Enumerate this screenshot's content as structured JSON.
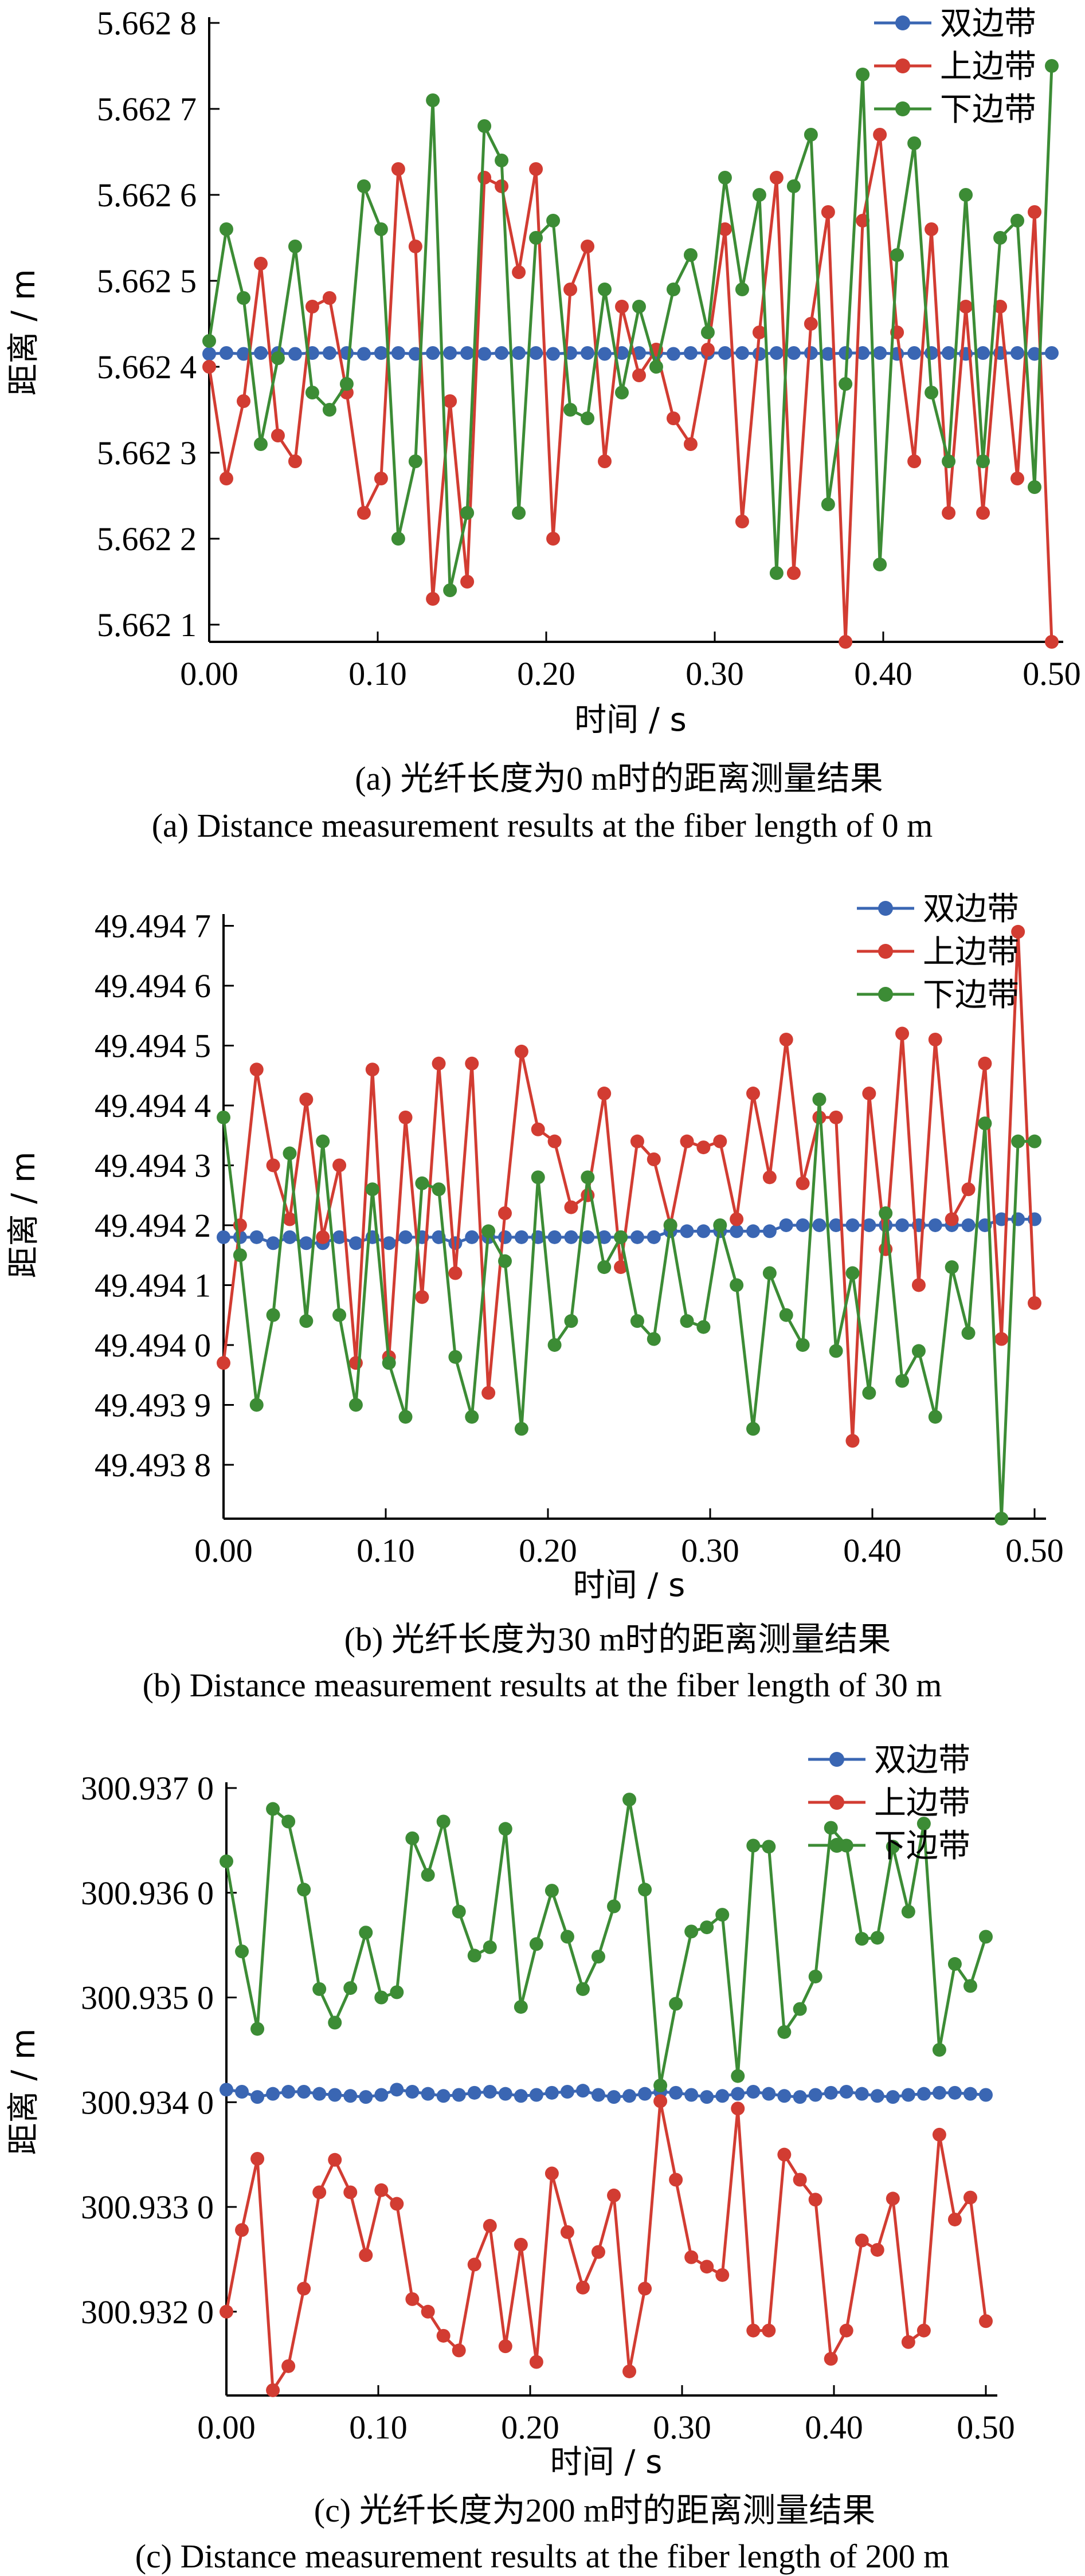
{
  "chart_data": [
    {
      "id": "a",
      "type": "line",
      "xlabel": "时间 / s",
      "ylabel": "距离 / m",
      "xlim": [
        0.0,
        0.5
      ],
      "ylim": [
        5.66208,
        5.6628
      ],
      "xticks": [
        0.0,
        0.1,
        0.2,
        0.3,
        0.4,
        0.5
      ],
      "xtick_labels": [
        "0.00",
        "0.10",
        "0.20",
        "0.30",
        "0.40",
        "0.50"
      ],
      "yticks": [
        5.6621,
        5.6622,
        5.6623,
        5.6624,
        5.6625,
        5.6626,
        5.6627,
        5.6628
      ],
      "ytick_labels": [
        "5.662 1",
        "5.662 2",
        "5.662 3",
        "5.662 4",
        "5.662 5",
        "5.662 6",
        "5.662 7",
        "5.662 8"
      ],
      "legend_position": "top-right",
      "caption_zh": "(a) 光纤长度为0 m时的距离测量结果",
      "caption_en": "(a) Distance measurement results at the fiber length of 0 m",
      "colors": {
        "双边带": "#3a66b3",
        "上边带": "#d23c32",
        "下边带": "#3c8c35"
      },
      "x": [
        0.0,
        0.0102,
        0.0204,
        0.0306,
        0.0408,
        0.051,
        0.0612,
        0.0714,
        0.0816,
        0.0918,
        0.102,
        0.1122,
        0.1224,
        0.1327,
        0.1429,
        0.1531,
        0.1633,
        0.1735,
        0.1837,
        0.1939,
        0.2041,
        0.2143,
        0.2245,
        0.2347,
        0.2449,
        0.2551,
        0.2653,
        0.2755,
        0.2857,
        0.2959,
        0.3061,
        0.3163,
        0.3265,
        0.3367,
        0.3469,
        0.3571,
        0.3673,
        0.3776,
        0.3878,
        0.398,
        0.4082,
        0.4184,
        0.4286,
        0.4388,
        0.449,
        0.4592,
        0.4694,
        0.4796,
        0.4898,
        0.5
      ],
      "series": [
        {
          "name": "双边带",
          "values": [
            5.662415,
            5.662416,
            5.662415,
            5.662416,
            5.662416,
            5.662415,
            5.662416,
            5.662416,
            5.662416,
            5.662415,
            5.662416,
            5.662416,
            5.662415,
            5.662416,
            5.662416,
            5.662416,
            5.662415,
            5.662416,
            5.662416,
            5.662416,
            5.662415,
            5.662416,
            5.662416,
            5.662415,
            5.662416,
            5.662416,
            5.662416,
            5.662415,
            5.662416,
            5.662416,
            5.662416,
            5.662416,
            5.662415,
            5.662416,
            5.662416,
            5.662416,
            5.662415,
            5.662416,
            5.662416,
            5.662416,
            5.662415,
            5.662416,
            5.662416,
            5.662416,
            5.662415,
            5.662416,
            5.662416,
            5.662416,
            5.662415,
            5.662416
          ]
        },
        {
          "name": "上边带",
          "values": [
            5.6624,
            5.66227,
            5.66236,
            5.66252,
            5.66232,
            5.66229,
            5.66247,
            5.66248,
            5.66237,
            5.66223,
            5.66227,
            5.66263,
            5.66254,
            5.66213,
            5.66236,
            5.66215,
            5.66262,
            5.66261,
            5.66251,
            5.66263,
            5.6622,
            5.66249,
            5.66254,
            5.66229,
            5.66247,
            5.66239,
            5.66242,
            5.66234,
            5.66231,
            5.66242,
            5.66256,
            5.66222,
            5.66244,
            5.66262,
            5.66216,
            5.66245,
            5.66258,
            5.66208,
            5.66257,
            5.66267,
            5.66244,
            5.66229,
            5.66256,
            5.66223,
            5.66247,
            5.66223,
            5.66247,
            5.66227,
            5.66258,
            5.66208
          ]
        },
        {
          "name": "下边带",
          "values": [
            5.66243,
            5.66256,
            5.66248,
            5.66231,
            5.66241,
            5.66254,
            5.66237,
            5.66235,
            5.66238,
            5.66261,
            5.66256,
            5.6622,
            5.66229,
            5.66271,
            5.66214,
            5.66223,
            5.66268,
            5.66264,
            5.66223,
            5.66255,
            5.66257,
            5.66235,
            5.66234,
            5.66249,
            5.66237,
            5.66247,
            5.6624,
            5.66249,
            5.66253,
            5.66244,
            5.66262,
            5.66249,
            5.6626,
            5.66216,
            5.66261,
            5.66267,
            5.66224,
            5.66238,
            5.66274,
            5.66217,
            5.66253,
            5.66266,
            5.66237,
            5.66229,
            5.6626,
            5.66229,
            5.66255,
            5.66257,
            5.66226,
            5.66275
          ]
        }
      ]
    },
    {
      "id": "b",
      "type": "line",
      "xlabel": "时间 / s",
      "ylabel": "距离 / m",
      "xlim": [
        0.0,
        0.5
      ],
      "ylim": [
        49.49371,
        49.49471
      ],
      "xticks": [
        0.0,
        0.1,
        0.2,
        0.3,
        0.4,
        0.5
      ],
      "xtick_labels": [
        "0.00",
        "0.10",
        "0.20",
        "0.30",
        "0.40",
        "0.50"
      ],
      "yticks": [
        49.4938,
        49.4939,
        49.494,
        49.4941,
        49.4942,
        49.4943,
        49.4944,
        49.4945,
        49.4946,
        49.4947
      ],
      "ytick_labels": [
        "49.493 8",
        "49.493 9",
        "49.494 0",
        "49.494 1",
        "49.494 2",
        "49.494 3",
        "49.494 4",
        "49.494 5",
        "49.494 6",
        "49.494 7"
      ],
      "legend_position": "top-right",
      "caption_zh": "(b) 光纤长度为30 m时的距离测量结果",
      "caption_en": "(b) Distance measurement results at the fiber length of 30 m",
      "colors": {
        "双边带": "#3a66b3",
        "上边带": "#d23c32",
        "下边带": "#3c8c35"
      },
      "x": [
        0.0,
        0.0102,
        0.0204,
        0.0306,
        0.0408,
        0.051,
        0.0612,
        0.0714,
        0.0816,
        0.0918,
        0.102,
        0.1122,
        0.1224,
        0.1327,
        0.1429,
        0.1531,
        0.1633,
        0.1735,
        0.1837,
        0.1939,
        0.2041,
        0.2143,
        0.2245,
        0.2347,
        0.2449,
        0.2551,
        0.2653,
        0.2755,
        0.2857,
        0.2959,
        0.3061,
        0.3163,
        0.3265,
        0.3367,
        0.3469,
        0.3571,
        0.3673,
        0.3776,
        0.3878,
        0.398,
        0.4082,
        0.4184,
        0.4286,
        0.4388,
        0.449,
        0.4592,
        0.4694,
        0.4796,
        0.4898,
        0.5
      ],
      "series": [
        {
          "name": "双边带",
          "values": [
            49.49418,
            49.49418,
            49.49418,
            49.49417,
            49.49418,
            49.49417,
            49.49417,
            49.49418,
            49.49417,
            49.49418,
            49.49417,
            49.49418,
            49.49418,
            49.49418,
            49.49417,
            49.49418,
            49.49418,
            49.49418,
            49.49418,
            49.49418,
            49.49418,
            49.49418,
            49.49418,
            49.49418,
            49.49418,
            49.49418,
            49.49418,
            49.49419,
            49.49419,
            49.49419,
            49.49419,
            49.49419,
            49.49419,
            49.49419,
            49.4942,
            49.4942,
            49.4942,
            49.4942,
            49.4942,
            49.4942,
            49.4942,
            49.4942,
            49.4942,
            49.4942,
            49.4942,
            49.4942,
            49.4942,
            49.49421,
            49.49421,
            49.49421
          ]
        },
        {
          "name": "上边带",
          "values": [
            49.49397,
            49.4942,
            49.49446,
            49.4943,
            49.49421,
            49.49441,
            49.49418,
            49.4943,
            49.49397,
            49.49446,
            49.49398,
            49.49438,
            49.49408,
            49.49447,
            49.49412,
            49.49447,
            49.49392,
            49.49422,
            49.49449,
            49.49436,
            49.49434,
            49.49423,
            49.49425,
            49.49442,
            49.49413,
            49.49434,
            49.49431,
            49.4942,
            49.49434,
            49.49433,
            49.49434,
            49.49421,
            49.49442,
            49.49428,
            49.49451,
            49.49427,
            49.49438,
            49.49438,
            49.49384,
            49.49442,
            49.49416,
            49.49452,
            49.4941,
            49.49451,
            49.49421,
            49.49426,
            49.49447,
            49.49401,
            49.49469,
            49.49407
          ]
        },
        {
          "name": "下边带",
          "values": [
            49.49438,
            49.49415,
            49.4939,
            49.49405,
            49.49432,
            49.49404,
            49.49434,
            49.49405,
            49.4939,
            49.49426,
            49.49397,
            49.49388,
            49.49427,
            49.49426,
            49.49398,
            49.49388,
            49.49419,
            49.49414,
            49.49386,
            49.49428,
            49.494,
            49.49404,
            49.49428,
            49.49413,
            49.49418,
            49.49404,
            49.49401,
            49.4942,
            49.49404,
            49.49403,
            49.4942,
            49.4941,
            49.49386,
            49.49412,
            49.49405,
            49.494,
            49.49441,
            49.49399,
            49.49412,
            49.49392,
            49.49422,
            49.49394,
            49.49399,
            49.49388,
            49.49413,
            49.49402,
            49.49437,
            49.49371,
            49.49434,
            49.49434
          ]
        }
      ]
    },
    {
      "id": "c",
      "type": "line",
      "xlabel": "时间 / s",
      "ylabel": "距离 / m",
      "xlim": [
        0.0,
        0.5
      ],
      "ylim": [
        300.9312,
        300.937
      ],
      "xticks": [
        0.0,
        0.1,
        0.2,
        0.3,
        0.4,
        0.5
      ],
      "xtick_labels": [
        "0.00",
        "0.10",
        "0.20",
        "0.30",
        "0.40",
        "0.50"
      ],
      "yticks": [
        300.932,
        300.933,
        300.934,
        300.935,
        300.936,
        300.937
      ],
      "ytick_labels": [
        "300.932 0",
        "300.933 0",
        "300.934 0",
        "300.935 0",
        "300.936 0",
        "300.937 0"
      ],
      "legend_position": "top-right",
      "caption_zh": "(c) 光纤长度为200 m时的距离测量结果",
      "caption_en": "(c) Distance measurement results at the fiber length of 200 m",
      "colors": {
        "双边带": "#3a66b3",
        "上边带": "#d23c32",
        "下边带": "#3c8c35"
      },
      "x": [
        0.0,
        0.0102,
        0.0204,
        0.0306,
        0.0408,
        0.051,
        0.0612,
        0.0714,
        0.0816,
        0.0918,
        0.102,
        0.1122,
        0.1224,
        0.1327,
        0.1429,
        0.1531,
        0.1633,
        0.1735,
        0.1837,
        0.1939,
        0.2041,
        0.2143,
        0.2245,
        0.2347,
        0.2449,
        0.2551,
        0.2653,
        0.2755,
        0.2857,
        0.2959,
        0.3061,
        0.3163,
        0.3265,
        0.3367,
        0.3469,
        0.3571,
        0.3673,
        0.3776,
        0.3878,
        0.398,
        0.4082,
        0.4184,
        0.4286,
        0.4388,
        0.449,
        0.4592,
        0.4694,
        0.4796,
        0.4898,
        0.5
      ],
      "series": [
        {
          "name": "双边带",
          "values": [
            300.93412,
            300.9341,
            300.93405,
            300.93408,
            300.9341,
            300.9341,
            300.93408,
            300.93407,
            300.93406,
            300.93405,
            300.93407,
            300.93412,
            300.9341,
            300.93408,
            300.93406,
            300.93407,
            300.93409,
            300.9341,
            300.93408,
            300.93406,
            300.93407,
            300.93409,
            300.9341,
            300.93411,
            300.93407,
            300.93405,
            300.93406,
            300.93408,
            300.9341,
            300.93409,
            300.93407,
            300.93405,
            300.93406,
            300.93408,
            300.9341,
            300.93408,
            300.93406,
            300.93405,
            300.93407,
            300.93409,
            300.9341,
            300.93408,
            300.93406,
            300.93405,
            300.93407,
            300.93408,
            300.93409,
            300.93409,
            300.93408,
            300.93407
          ]
        },
        {
          "name": "上边带",
          "values": [
            300.932,
            300.93278,
            300.93346,
            300.93125,
            300.93148,
            300.93222,
            300.93314,
            300.93345,
            300.93314,
            300.93254,
            300.93316,
            300.93303,
            300.93212,
            300.932,
            300.93177,
            300.93163,
            300.93245,
            300.93282,
            300.93167,
            300.93264,
            300.93152,
            300.93332,
            300.93276,
            300.93223,
            300.93257,
            300.93311,
            300.93143,
            300.93222,
            300.93401,
            300.93326,
            300.93252,
            300.93243,
            300.93235,
            300.93394,
            300.93182,
            300.93182,
            300.9335,
            300.93326,
            300.93307,
            300.93155,
            300.93182,
            300.93268,
            300.93259,
            300.93308,
            300.93171,
            300.93182,
            300.93369,
            300.93288,
            300.93309,
            300.93191
          ]
        },
        {
          "name": "下边带",
          "values": [
            300.9363,
            300.93544,
            300.9347,
            300.9368,
            300.93668,
            300.93603,
            300.93508,
            300.93476,
            300.93509,
            300.93562,
            300.935,
            300.93505,
            300.93652,
            300.93617,
            300.93668,
            300.93582,
            300.9354,
            300.93548,
            300.93661,
            300.93491,
            300.93551,
            300.93602,
            300.93558,
            300.93508,
            300.93539,
            300.93587,
            300.93689,
            300.93603,
            300.93416,
            300.93494,
            300.93563,
            300.93567,
            300.93579,
            300.93425,
            300.93645,
            300.93644,
            300.93467,
            300.93489,
            300.9352,
            300.93662,
            300.93645,
            300.93556,
            300.93557,
            300.93644,
            300.93582,
            300.93666,
            300.9345,
            300.93532,
            300.93511,
            300.93558
          ]
        }
      ]
    }
  ]
}
